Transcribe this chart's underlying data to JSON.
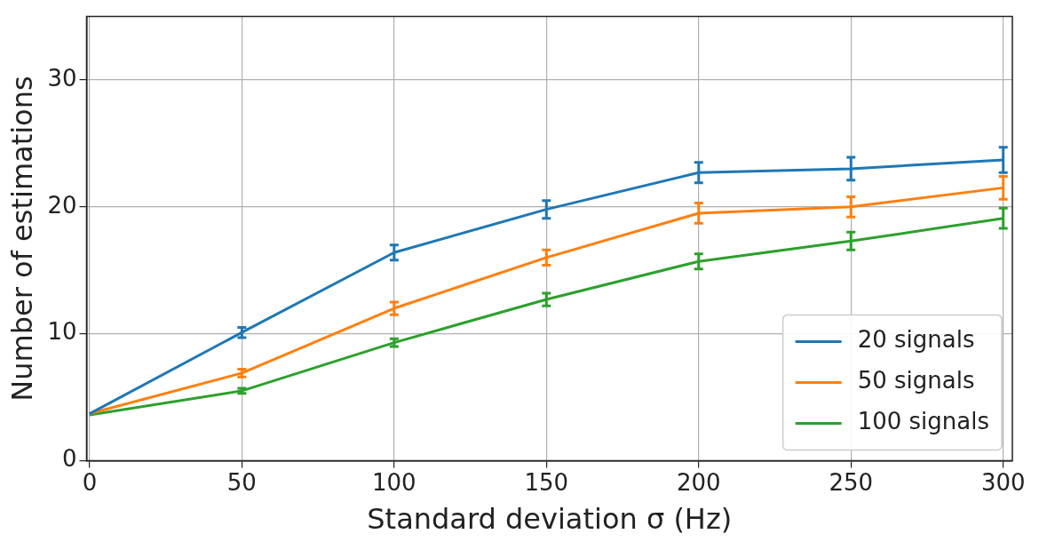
{
  "chart_data": {
    "type": "line",
    "xlabel": "Standard deviation σ (Hz)",
    "ylabel": "Number of estimations",
    "x": [
      0,
      50,
      100,
      150,
      200,
      250,
      300
    ],
    "series": [
      {
        "name": "20 signals",
        "color": "#1f77b4",
        "values": [
          3.7,
          10.1,
          16.4,
          19.8,
          22.7,
          23.0,
          23.7
        ],
        "errors": [
          null,
          0.4,
          0.6,
          0.7,
          0.8,
          0.9,
          1.0
        ]
      },
      {
        "name": "50 signals",
        "color": "#ff7f0e",
        "values": [
          3.7,
          6.9,
          12.0,
          16.0,
          19.5,
          20.0,
          21.5
        ],
        "errors": [
          null,
          0.3,
          0.5,
          0.6,
          0.8,
          0.8,
          0.9
        ]
      },
      {
        "name": "100 signals",
        "color": "#2ca02c",
        "values": [
          3.6,
          5.5,
          9.3,
          12.7,
          15.7,
          17.3,
          19.1
        ],
        "errors": [
          null,
          0.2,
          0.3,
          0.5,
          0.6,
          0.7,
          0.8
        ]
      }
    ],
    "xlim": [
      -1,
      303
    ],
    "xticks": [
      0,
      50,
      100,
      150,
      200,
      250,
      300
    ],
    "ylim": [
      0,
      35
    ],
    "yticks": [
      0,
      10,
      20,
      30
    ],
    "grid": true,
    "legend": "bottom right",
    "marker": "none",
    "line_style": "solid"
  }
}
